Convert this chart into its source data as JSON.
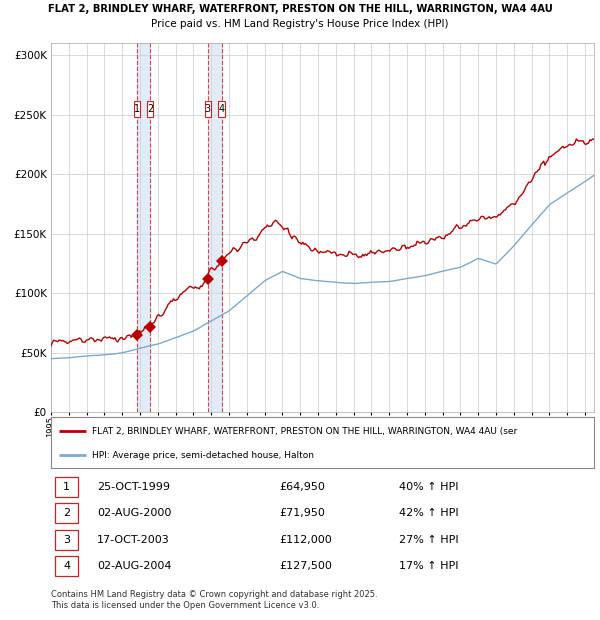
{
  "title1": "FLAT 2, BRINDLEY WHARF, WATERFRONT, PRESTON ON THE HILL, WARRINGTON, WA4 4AU",
  "title2": "Price paid vs. HM Land Registry's House Price Index (HPI)",
  "xlim_start": 1995.0,
  "xlim_end": 2025.5,
  "ylim": [
    0,
    310000
  ],
  "yticks": [
    0,
    50000,
    100000,
    150000,
    200000,
    250000,
    300000
  ],
  "ytick_labels": [
    "£0",
    "£50K",
    "£100K",
    "£150K",
    "£200K",
    "£250K",
    "£300K"
  ],
  "line1_color": "#bb0000",
  "line2_color": "#7aaad0",
  "legend_line1": "FLAT 2, BRINDLEY WHARF, WATERFRONT, PRESTON ON THE HILL, WARRINGTON, WA4 4AU (ser",
  "legend_line2": "HPI: Average price, semi-detached house, Halton",
  "transactions": [
    {
      "num": 1,
      "date": "25-OCT-1999",
      "price": "£64,950",
      "hpi": "40% ↑ HPI",
      "year": 1999.82,
      "value": 64950
    },
    {
      "num": 2,
      "date": "02-AUG-2000",
      "price": "£71,950",
      "hpi": "42% ↑ HPI",
      "year": 2000.58,
      "value": 71950
    },
    {
      "num": 3,
      "date": "17-OCT-2003",
      "price": "£112,000",
      "hpi": "27% ↑ HPI",
      "year": 2003.8,
      "value": 112000
    },
    {
      "num": 4,
      "date": "02-AUG-2004",
      "price": "£127,500",
      "hpi": "17% ↑ HPI",
      "year": 2004.58,
      "value": 127500
    }
  ],
  "footnote": "Contains HM Land Registry data © Crown copyright and database right 2025.\nThis data is licensed under the Open Government Licence v3.0.",
  "background_color": "#ffffff",
  "grid_color": "#cccccc"
}
